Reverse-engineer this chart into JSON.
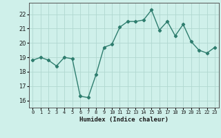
{
  "x": [
    0,
    1,
    2,
    3,
    4,
    5,
    6,
    7,
    8,
    9,
    10,
    11,
    12,
    13,
    14,
    15,
    16,
    17,
    18,
    19,
    20,
    21,
    22,
    23
  ],
  "y": [
    18.8,
    19.0,
    18.8,
    18.4,
    19.0,
    18.9,
    16.3,
    16.2,
    17.8,
    19.7,
    19.9,
    21.1,
    21.5,
    21.5,
    21.6,
    22.3,
    20.9,
    21.5,
    20.5,
    21.3,
    20.1,
    19.5,
    19.3,
    19.7
  ],
  "xlabel": "Humidex (Indice chaleur)",
  "ylim": [
    15.5,
    22.8
  ],
  "xlim": [
    -0.5,
    23.5
  ],
  "yticks": [
    16,
    17,
    18,
    19,
    20,
    21,
    22
  ],
  "xtick_labels": [
    "0",
    "1",
    "2",
    "3",
    "4",
    "5",
    "6",
    "7",
    "8",
    "9",
    "10",
    "11",
    "12",
    "13",
    "14",
    "15",
    "16",
    "17",
    "18",
    "19",
    "20",
    "21",
    "22",
    "23"
  ],
  "line_color": "#2e7d6e",
  "bg_color": "#cff0ea",
  "grid_color": "#b0d8d0",
  "marker": "D",
  "marker_size": 2.2,
  "line_width": 1.0
}
